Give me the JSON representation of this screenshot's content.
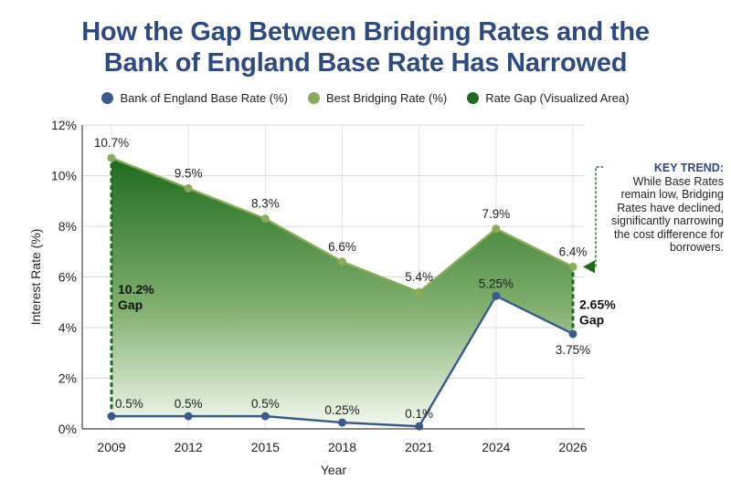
{
  "title_line1": "How the Gap Between Bridging Rates and the",
  "title_line2": "Bank of England Base Rate Has Narrowed",
  "legend": [
    {
      "label": "Bank of England Base Rate (%)",
      "color": "#3a5a8c"
    },
    {
      "label": "Best Bridging Rate (%)",
      "color": "#8aab5a"
    },
    {
      "label": "Rate Gap (Visualized Area)",
      "color": "#1e6b1e"
    }
  ],
  "callout": {
    "heading": "KEY TREND:",
    "body": "While Base Rates remain low, Bridging Rates have declined, significantly narrowing the cost difference for borrowers."
  },
  "chart_data": {
    "type": "area",
    "xlabel": "Year",
    "ylabel": "Interest Rate (%)",
    "ylim": [
      0,
      12
    ],
    "yticks": [
      "0%",
      "2%",
      "4%",
      "6%",
      "8%",
      "10%",
      "12%"
    ],
    "grid": true,
    "legend_position": "top",
    "x": [
      "2009",
      "2012",
      "2015",
      "2018",
      "2021",
      "2024",
      "2026"
    ],
    "series": [
      {
        "name": "Bank of England Base Rate (%)",
        "values": [
          0.5,
          0.5,
          0.5,
          0.25,
          0.1,
          5.25,
          3.75
        ],
        "labels": [
          "0.5%",
          "0.5%",
          "0.5%",
          "0.25%",
          "0.1%",
          "5.25%",
          "3.75%"
        ],
        "color": "#3a5a8c"
      },
      {
        "name": "Best Bridging Rate (%)",
        "values": [
          10.7,
          9.5,
          8.3,
          6.6,
          5.4,
          7.9,
          6.4
        ],
        "labels": [
          "10.7%",
          "9.5%",
          "8.3%",
          "6.6%",
          "5.4%",
          "7.9%",
          "6.4%"
        ],
        "color": "#8aab5a"
      }
    ],
    "annotations": [
      {
        "x": "2009",
        "text_value": "10.2%",
        "text_word": "Gap"
      },
      {
        "x": "2026",
        "text_value": "2.65%",
        "text_word": "Gap"
      }
    ]
  }
}
